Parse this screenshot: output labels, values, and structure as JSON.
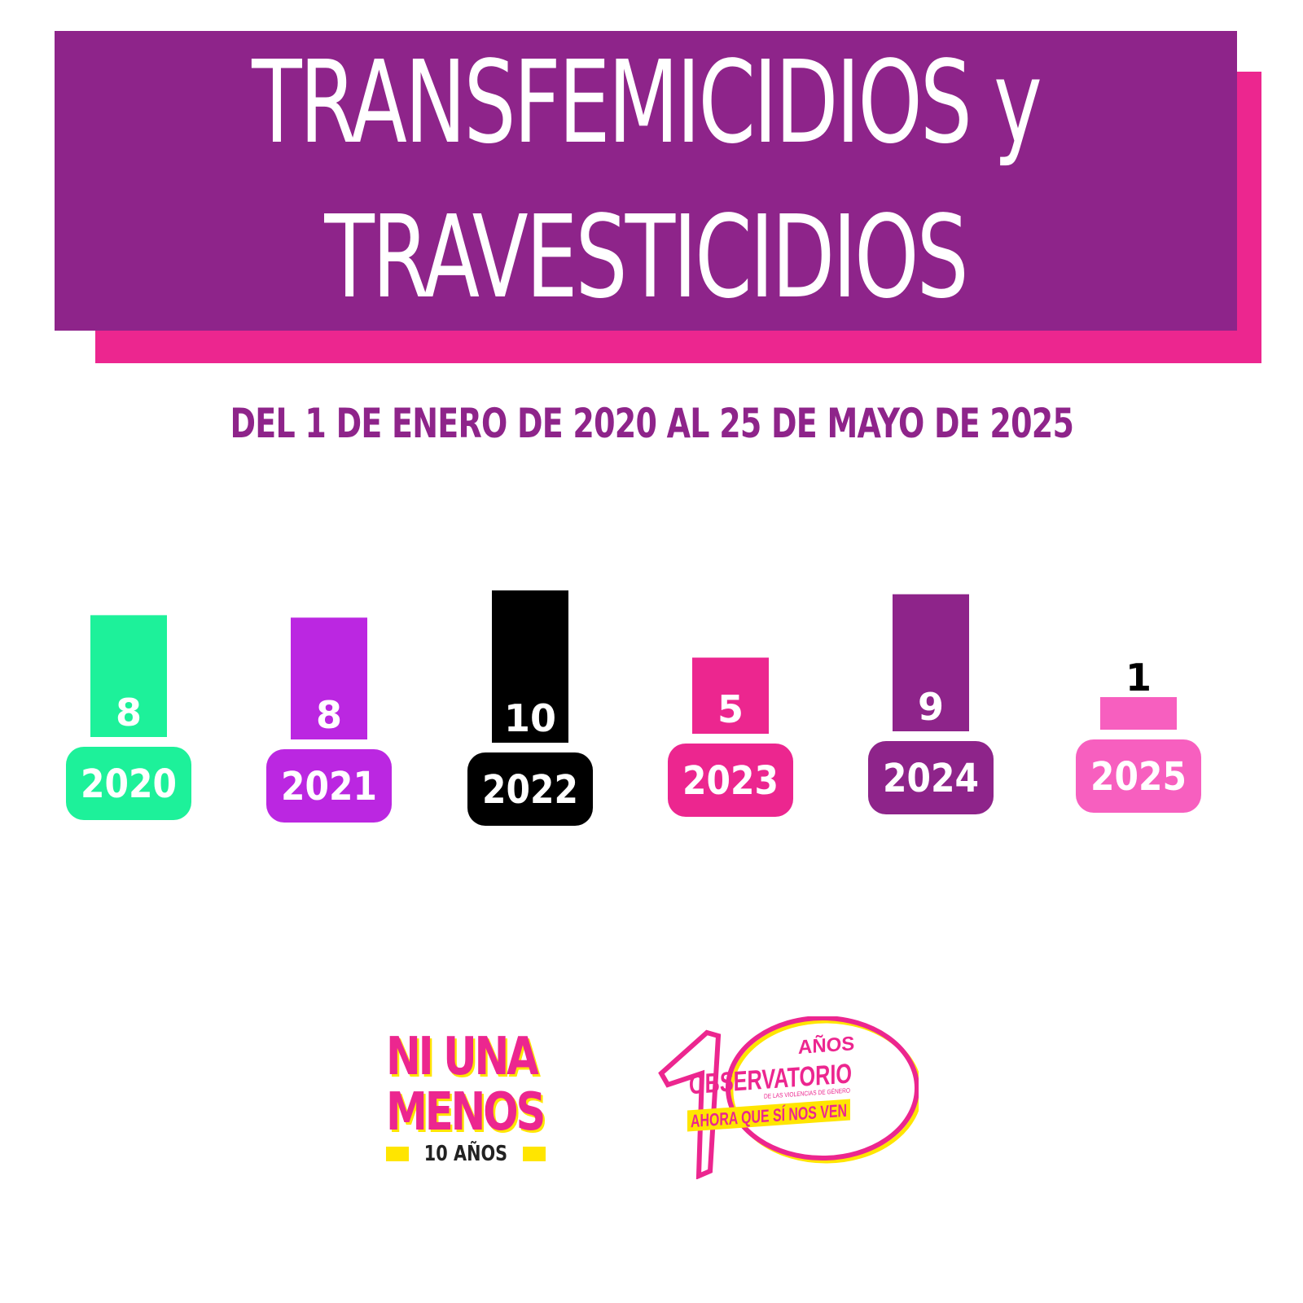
{
  "title": {
    "line1": "TRANSFEMICIDIOS y",
    "line2": "TRAVESTICIDIOS"
  },
  "subtitle": "DEL 1 DE ENERO DE 2020 AL 25 DE MAYO DE 2025",
  "chart_data": {
    "type": "bar",
    "categories": [
      "2020",
      "2021",
      "2022",
      "2023",
      "2024",
      "2025"
    ],
    "values": [
      8,
      8,
      10,
      5,
      9,
      1
    ],
    "colors": [
      "#1df19a",
      "#bb27e1",
      "#000000",
      "#ec268f",
      "#8e248a",
      "#f75fbf"
    ],
    "title": "TRANSFEMICIDIOS y TRAVESTICIDIOS",
    "subtitle": "DEL 1 DE ENERO DE 2020 AL 25 DE MAYO DE 2025",
    "xlabel": "",
    "ylabel": "",
    "grid": false,
    "legend": "none"
  },
  "logos": {
    "ni_una_menos": {
      "line1": "NI UNA",
      "line2": "MENOS",
      "bottom": "10 AÑOS"
    },
    "observatorio": {
      "anos": "AÑOS",
      "name": "OBSERVATORIO",
      "sub": "DE LAS VIOLENCIAS DE GÉNERO",
      "slogan": "AHORA QUE SÍ NOS VEN"
    }
  },
  "colors": {
    "purple": "#8e248a",
    "pink": "#ec268f",
    "yellow": "#ffe500"
  }
}
